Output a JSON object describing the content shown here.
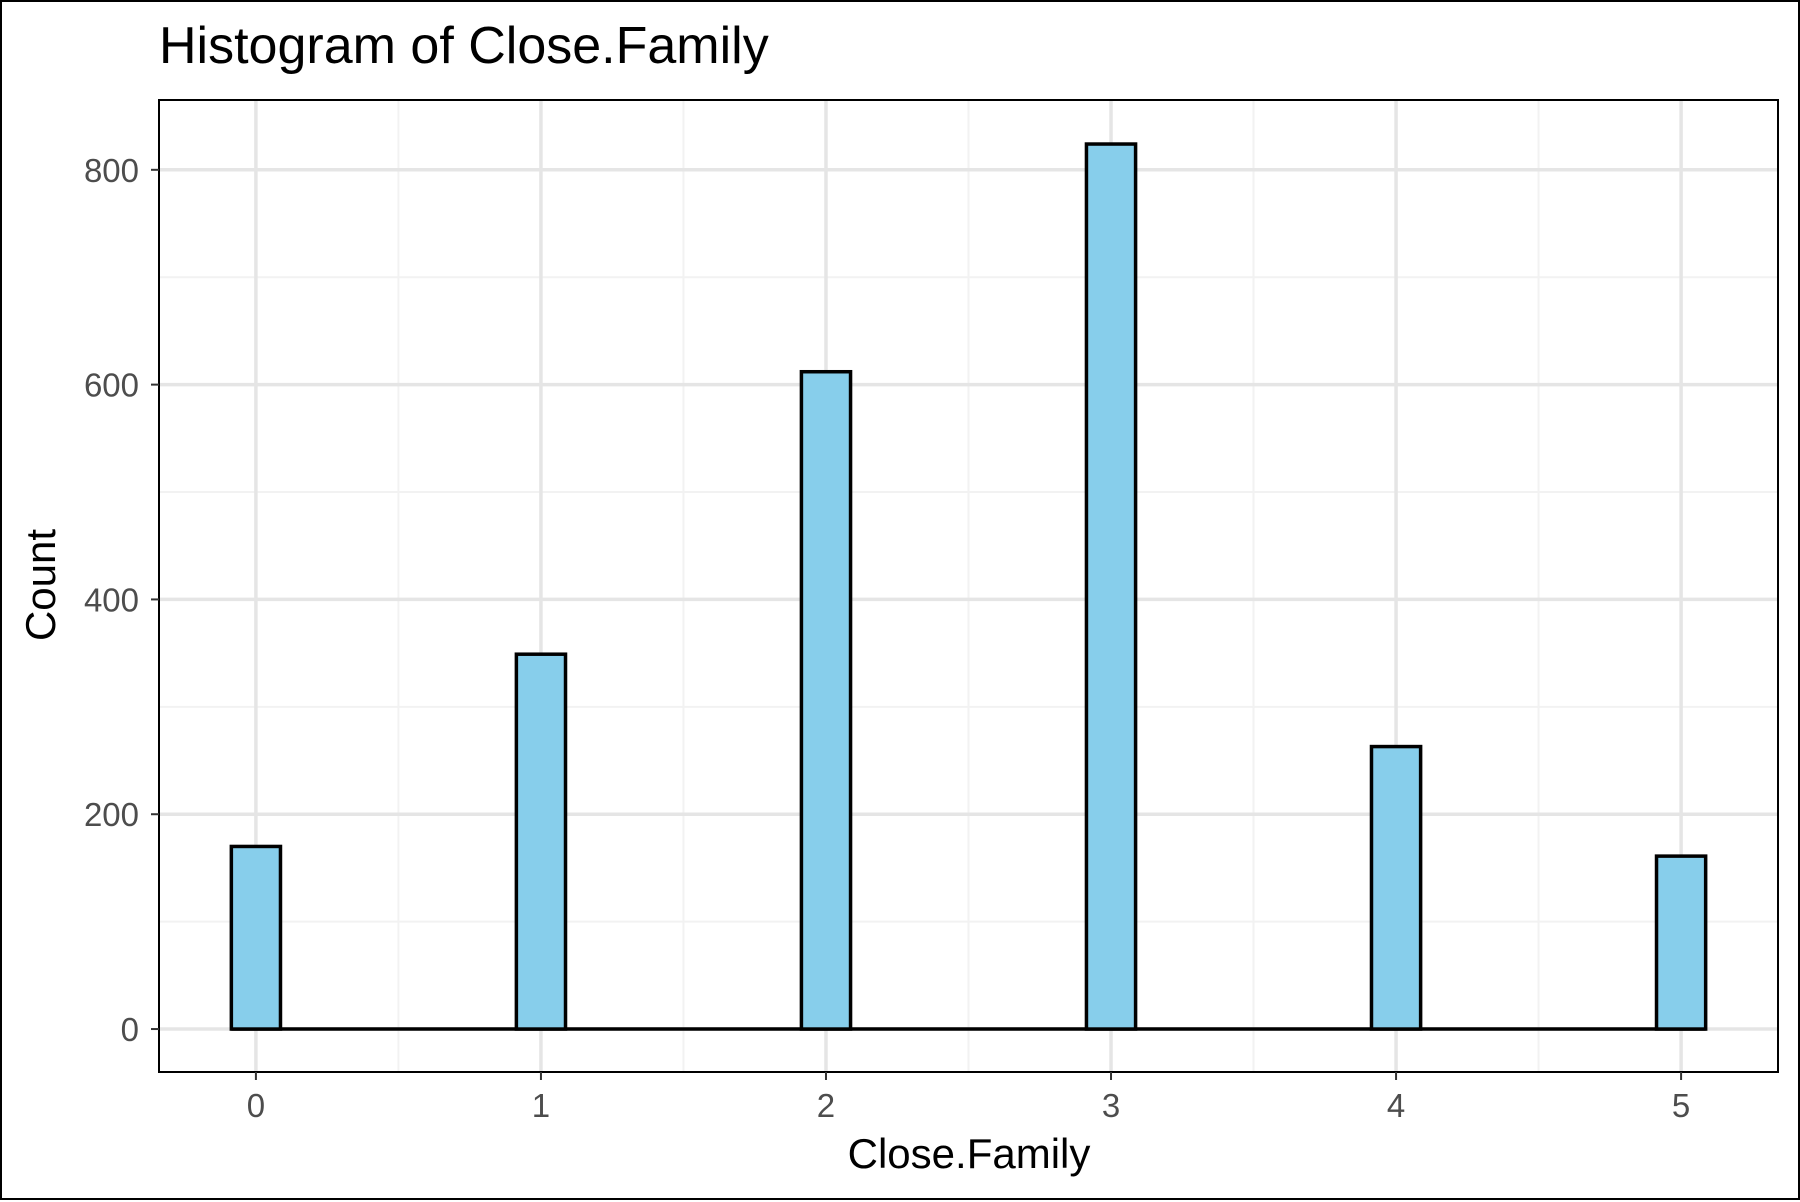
{
  "chart_data": {
    "type": "bar",
    "title": "Histogram of Close.Family",
    "xlabel": "Close.Family",
    "ylabel": "Count",
    "categories": [
      "0",
      "1",
      "2",
      "3",
      "4",
      "5"
    ],
    "x": [
      0,
      1,
      2,
      3,
      4,
      5
    ],
    "values": [
      170,
      349,
      612,
      824,
      263,
      161
    ],
    "xlim": [
      -0.34,
      5.34
    ],
    "ylim": [
      -40,
      865
    ],
    "x_ticks": [
      0,
      1,
      2,
      3,
      4,
      5
    ],
    "y_ticks": [
      0,
      200,
      400,
      600,
      800
    ],
    "y_minor_ticks": [
      100,
      300,
      500,
      700
    ],
    "x_minor_ticks": [
      0.5,
      1.5,
      2.5,
      3.5,
      4.5
    ],
    "grid": true,
    "legend": "none",
    "colors": {
      "bar_fill": "#87CEEB",
      "bar_outline": "#000000",
      "grid_major": "#e5e5e5",
      "grid_minor": "#f2f2f2",
      "panel_border": "#000000",
      "tick_label": "#4d4d4d"
    }
  }
}
